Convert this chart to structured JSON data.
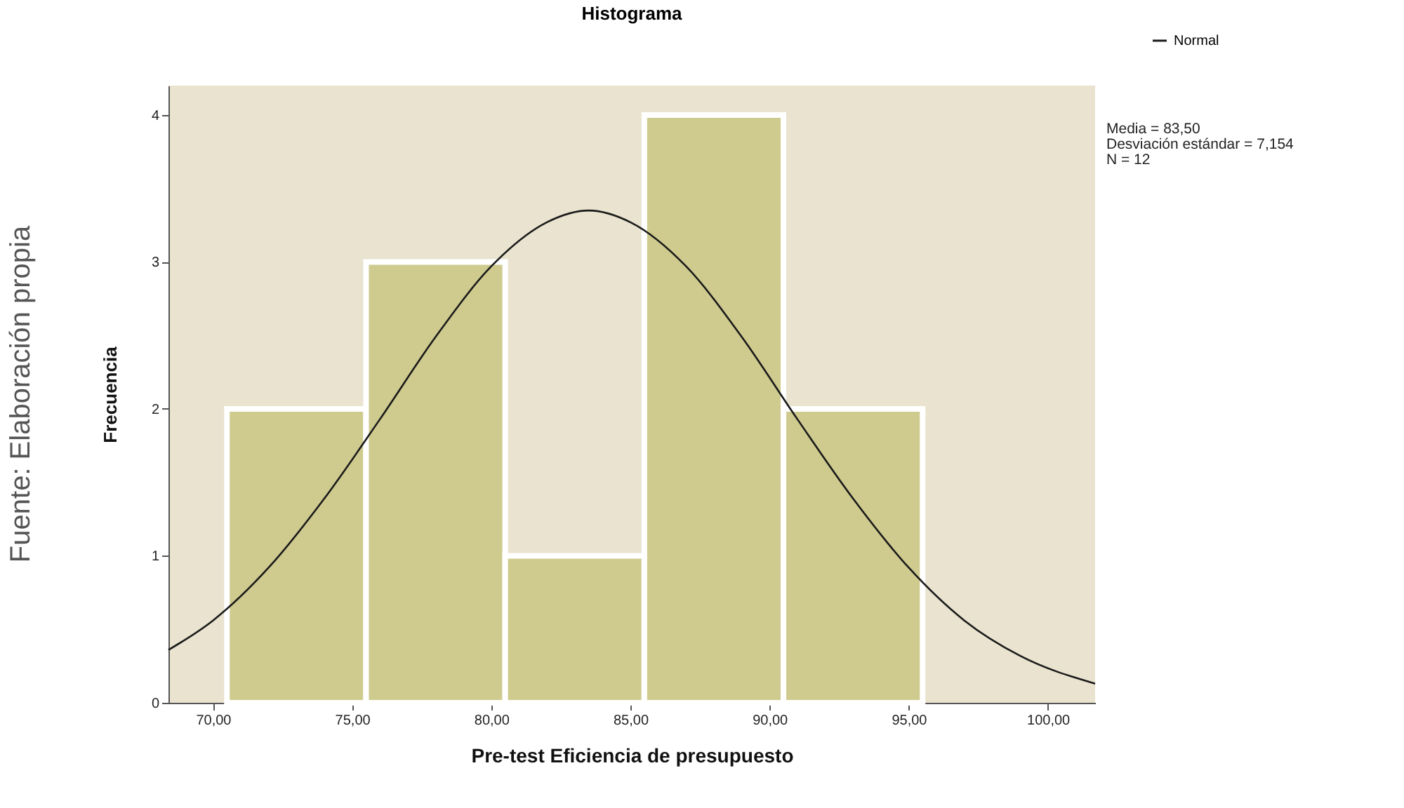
{
  "chart_data": {
    "type": "histogram",
    "title": "Histograma",
    "xlabel": "Pre-test Eficiencia de presupuesto",
    "ylabel": "Frecuencia",
    "bins": [
      70.5,
      75.5,
      80.5,
      85.5,
      90.5,
      95.5
    ],
    "values": [
      2,
      3,
      1,
      4,
      2
    ],
    "color": "#cfcb8f",
    "series": [
      {
        "name": "Normal",
        "type": "line",
        "color": "#1a1a1a",
        "x": [
          68.4,
          70,
          72,
          74,
          76,
          78,
          80,
          82,
          83.5,
          85,
          87,
          89,
          91,
          93,
          95,
          97,
          99,
          101.7
        ],
        "values": [
          0.36,
          0.56,
          0.92,
          1.39,
          1.93,
          2.49,
          2.97,
          3.27,
          3.35,
          3.27,
          2.97,
          2.49,
          1.93,
          1.39,
          0.92,
          0.56,
          0.32,
          0.13
        ]
      }
    ],
    "xlim": [
      68.4,
      101.7
    ],
    "ylim": [
      0,
      4.2
    ],
    "xticks": [
      {
        "value": 70,
        "label": "70,00"
      },
      {
        "value": 75,
        "label": "75,00"
      },
      {
        "value": 80,
        "label": "80,00"
      },
      {
        "value": 85,
        "label": "85,00"
      },
      {
        "value": 90,
        "label": "90,00"
      },
      {
        "value": 95,
        "label": "95,00"
      },
      {
        "value": 100,
        "label": "100,00"
      }
    ],
    "yticks": [
      0,
      1,
      2,
      3,
      4
    ],
    "grid": false,
    "legend": "top right",
    "annotations": [
      "Fuente: Elaboración propia",
      "Media = 83,50\nDesviación estándar = 7,154\nN = 12"
    ]
  }
}
